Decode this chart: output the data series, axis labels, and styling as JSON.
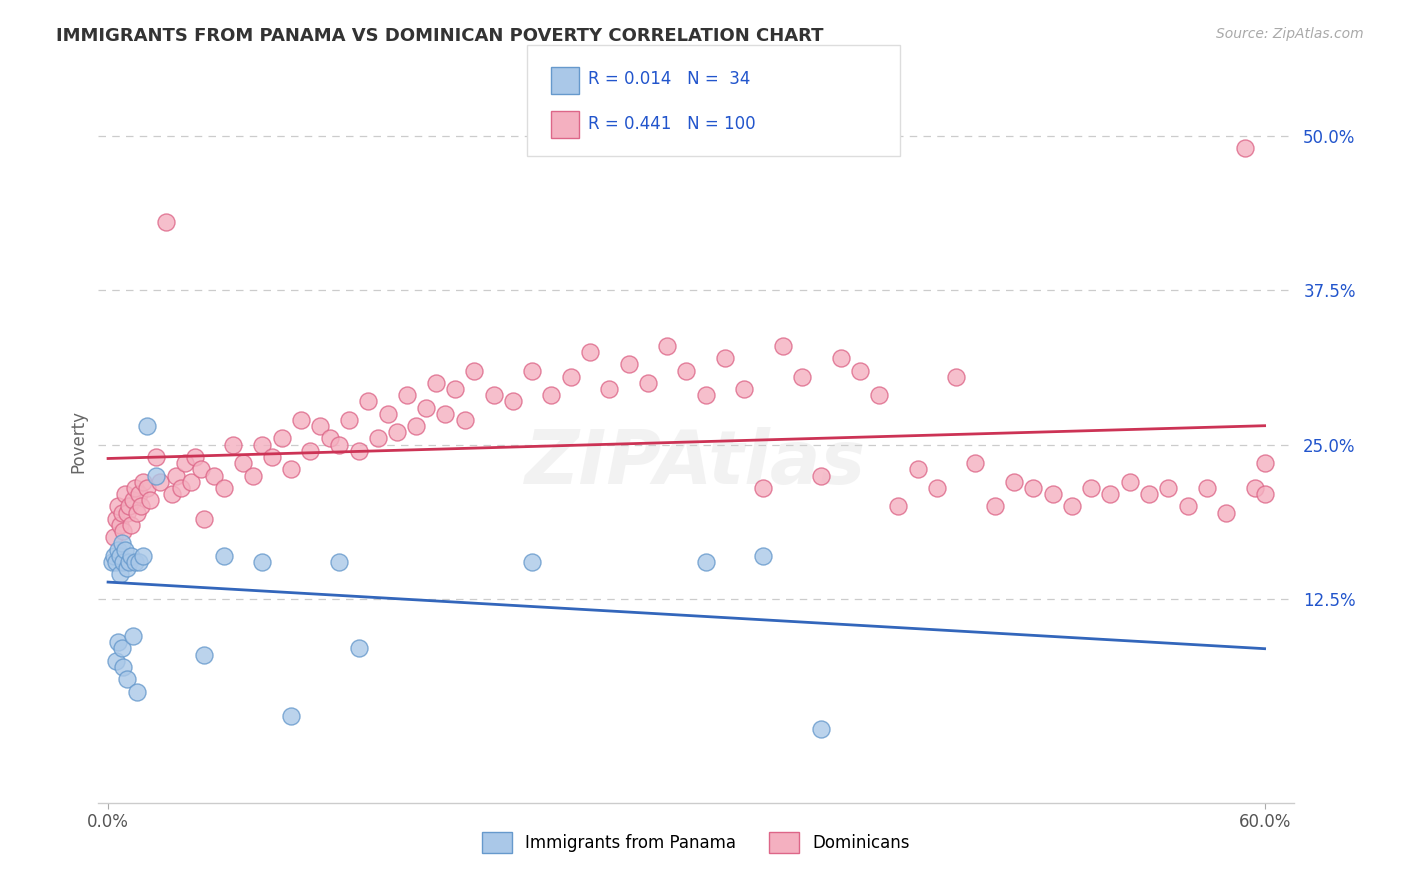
{
  "title": "IMMIGRANTS FROM PANAMA VS DOMINICAN POVERTY CORRELATION CHART",
  "source_text": "Source: ZipAtlas.com",
  "ylabel": "Poverty",
  "xlim": [
    -0.005,
    0.615
  ],
  "ylim": [
    -0.04,
    0.545
  ],
  "yticks_right": [
    0.125,
    0.25,
    0.375,
    0.5
  ],
  "ytick_right_labels": [
    "12.5%",
    "25.0%",
    "37.5%",
    "50.0%"
  ],
  "panama_color": "#aac8e8",
  "panama_edge": "#6699cc",
  "dominican_color": "#f4b0c0",
  "dominican_edge": "#dd6688",
  "panama_line_color": "#3366bb",
  "dominican_line_color": "#cc3355",
  "panama_R": 0.014,
  "panama_N": 34,
  "dominican_R": 0.441,
  "dominican_N": 100,
  "legend_label_panama": "Immigrants from Panama",
  "legend_label_dominican": "Dominicans",
  "background_color": "#ffffff",
  "grid_color": "#cccccc",
  "title_color": "#333333",
  "watermark": "ZIPAtlas",
  "r_color": "#2255cc",
  "panama_x": [
    0.002,
    0.003,
    0.004,
    0.004,
    0.005,
    0.005,
    0.006,
    0.006,
    0.007,
    0.007,
    0.008,
    0.008,
    0.009,
    0.01,
    0.01,
    0.011,
    0.012,
    0.013,
    0.014,
    0.015,
    0.016,
    0.018,
    0.02,
    0.025,
    0.05,
    0.06,
    0.08,
    0.095,
    0.12,
    0.13,
    0.22,
    0.31,
    0.34,
    0.37
  ],
  "panama_y": [
    0.155,
    0.16,
    0.075,
    0.155,
    0.165,
    0.09,
    0.16,
    0.145,
    0.17,
    0.085,
    0.155,
    0.07,
    0.165,
    0.06,
    0.15,
    0.155,
    0.16,
    0.095,
    0.155,
    0.05,
    0.155,
    0.16,
    0.265,
    0.225,
    0.08,
    0.16,
    0.155,
    0.03,
    0.155,
    0.085,
    0.155,
    0.155,
    0.16,
    0.02
  ],
  "dominican_x": [
    0.003,
    0.004,
    0.005,
    0.006,
    0.007,
    0.008,
    0.009,
    0.01,
    0.011,
    0.012,
    0.013,
    0.014,
    0.015,
    0.016,
    0.017,
    0.018,
    0.02,
    0.022,
    0.025,
    0.027,
    0.03,
    0.033,
    0.035,
    0.038,
    0.04,
    0.043,
    0.045,
    0.048,
    0.05,
    0.055,
    0.06,
    0.065,
    0.07,
    0.075,
    0.08,
    0.085,
    0.09,
    0.095,
    0.1,
    0.105,
    0.11,
    0.115,
    0.12,
    0.125,
    0.13,
    0.135,
    0.14,
    0.145,
    0.15,
    0.155,
    0.16,
    0.165,
    0.17,
    0.175,
    0.18,
    0.185,
    0.19,
    0.2,
    0.21,
    0.22,
    0.23,
    0.24,
    0.25,
    0.26,
    0.27,
    0.28,
    0.29,
    0.3,
    0.31,
    0.32,
    0.33,
    0.34,
    0.35,
    0.36,
    0.37,
    0.38,
    0.39,
    0.4,
    0.41,
    0.42,
    0.43,
    0.44,
    0.45,
    0.46,
    0.47,
    0.48,
    0.49,
    0.5,
    0.51,
    0.52,
    0.53,
    0.54,
    0.55,
    0.56,
    0.57,
    0.58,
    0.59,
    0.595,
    0.6,
    0.6
  ],
  "dominican_y": [
    0.175,
    0.19,
    0.2,
    0.185,
    0.195,
    0.18,
    0.21,
    0.195,
    0.2,
    0.185,
    0.205,
    0.215,
    0.195,
    0.21,
    0.2,
    0.22,
    0.215,
    0.205,
    0.24,
    0.22,
    0.43,
    0.21,
    0.225,
    0.215,
    0.235,
    0.22,
    0.24,
    0.23,
    0.19,
    0.225,
    0.215,
    0.25,
    0.235,
    0.225,
    0.25,
    0.24,
    0.255,
    0.23,
    0.27,
    0.245,
    0.265,
    0.255,
    0.25,
    0.27,
    0.245,
    0.285,
    0.255,
    0.275,
    0.26,
    0.29,
    0.265,
    0.28,
    0.3,
    0.275,
    0.295,
    0.27,
    0.31,
    0.29,
    0.285,
    0.31,
    0.29,
    0.305,
    0.325,
    0.295,
    0.315,
    0.3,
    0.33,
    0.31,
    0.29,
    0.32,
    0.295,
    0.215,
    0.33,
    0.305,
    0.225,
    0.32,
    0.31,
    0.29,
    0.2,
    0.23,
    0.215,
    0.305,
    0.235,
    0.2,
    0.22,
    0.215,
    0.21,
    0.2,
    0.215,
    0.21,
    0.22,
    0.21,
    0.215,
    0.2,
    0.215,
    0.195,
    0.49,
    0.215,
    0.21,
    0.235
  ]
}
